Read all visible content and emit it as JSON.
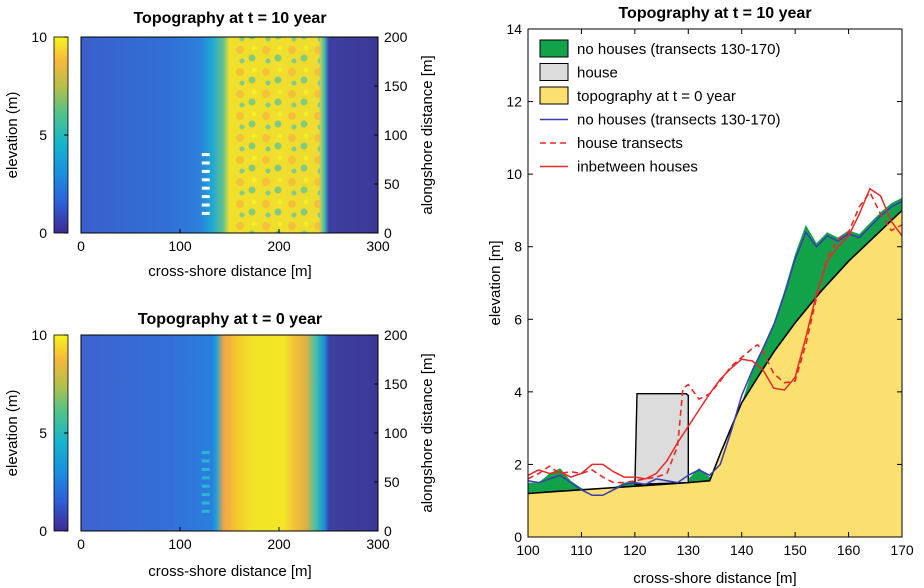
{
  "chart_data": [
    {
      "type": "heatmap",
      "title": "Topography at t = 10 year",
      "xlabel": "cross-shore distance [m]",
      "ylabel": "alongshore distance [m]",
      "colorbar_label": "elevation (m)",
      "xlim": [
        0,
        300
      ],
      "ylim": [
        0,
        200
      ],
      "clim": [
        0,
        10
      ],
      "x_ticks": [
        0,
        100,
        200,
        300
      ],
      "y_ticks": [
        0,
        50,
        100,
        150,
        200
      ],
      "colorbar_ticks": [
        0,
        5,
        10
      ],
      "colormap": "parula",
      "features": {
        "house_rows_x": [
          122,
          130
        ],
        "house_rows_y": [
          20,
          80
        ],
        "dune_crest_x": [
          150,
          250
        ]
      }
    },
    {
      "type": "heatmap",
      "title": "Topography at t = 0 year",
      "xlabel": "cross-shore distance [m]",
      "ylabel": "alongshore distance [m]",
      "colorbar_label": "elevation (m)",
      "xlim": [
        0,
        300
      ],
      "ylim": [
        0,
        200
      ],
      "clim": [
        0,
        10
      ],
      "x_ticks": [
        0,
        100,
        200,
        300
      ],
      "y_ticks": [
        0,
        50,
        100,
        150,
        200
      ],
      "colorbar_ticks": [
        0,
        5,
        10
      ],
      "colormap": "parula",
      "features": {
        "house_rows_x": [
          122,
          130
        ],
        "house_rows_y": [
          20,
          80
        ],
        "dune_crest_x": [
          140,
          250
        ]
      }
    },
    {
      "type": "area",
      "title": "Topography at t = 10 year",
      "xlabel": "cross-shore distance [m]",
      "ylabel": "elevation [m]",
      "xlim": [
        100,
        170
      ],
      "ylim": [
        0,
        14
      ],
      "x_ticks": [
        100,
        110,
        120,
        130,
        140,
        150,
        160,
        170
      ],
      "y_ticks": [
        0,
        2,
        4,
        6,
        8,
        10,
        12,
        14
      ],
      "legend_position": "top-left",
      "series": [
        {
          "name": "no houses (transects 130-170)",
          "kind": "fill",
          "color": "#12a34a",
          "x": [
            100,
            102,
            104,
            106,
            108,
            110,
            112,
            114,
            116,
            118,
            120,
            122,
            124,
            126,
            128,
            130,
            132,
            134,
            136,
            138,
            140,
            142,
            144,
            146,
            148,
            150,
            152,
            154,
            156,
            158,
            160,
            162,
            164,
            166,
            168,
            170
          ],
          "y": [
            1.5,
            1.5,
            1.75,
            1.9,
            1.55,
            1.35,
            1.2,
            1.2,
            1.35,
            1.5,
            1.55,
            1.5,
            1.6,
            1.45,
            1.45,
            1.6,
            1.9,
            1.65,
            1.9,
            2.7,
            3.7,
            4.6,
            5.25,
            5.9,
            6.8,
            7.8,
            8.6,
            8.1,
            8.4,
            8.25,
            8.45,
            8.35,
            8.65,
            8.95,
            9.2,
            9.35
          ]
        },
        {
          "name": "house",
          "kind": "fill",
          "color": "#dcdcdc",
          "x": [
            120,
            120.4,
            129.6,
            130,
            130
          ],
          "y": [
            1.45,
            3.95,
            3.95,
            3.9,
            1.5
          ]
        },
        {
          "name": "topography at t = 0 year",
          "kind": "fill",
          "color": "#fbe06f",
          "x": [
            100,
            105,
            110,
            115,
            120,
            125,
            130,
            134,
            136,
            138,
            140,
            143,
            146,
            150,
            155,
            160,
            165,
            170
          ],
          "y": [
            1.2,
            1.25,
            1.3,
            1.35,
            1.4,
            1.45,
            1.5,
            1.55,
            2.3,
            3.0,
            3.7,
            4.4,
            5.1,
            5.9,
            6.8,
            7.6,
            8.3,
            9.0
          ]
        },
        {
          "name": "no houses (transects 130-170)",
          "kind": "line",
          "color": "#3b3bb3",
          "x": [
            100,
            102,
            104,
            106,
            108,
            110,
            112,
            114,
            116,
            118,
            120,
            122,
            124,
            126,
            128,
            130,
            132,
            134,
            136,
            138,
            140,
            142,
            144,
            146,
            148,
            150,
            152,
            154,
            156,
            158,
            160,
            162,
            164,
            166,
            168,
            170
          ],
          "y": [
            1.55,
            1.5,
            1.6,
            1.7,
            1.5,
            1.3,
            1.15,
            1.15,
            1.3,
            1.45,
            1.5,
            1.45,
            1.6,
            1.55,
            1.5,
            1.7,
            1.85,
            1.7,
            2.0,
            2.9,
            3.9,
            4.6,
            5.2,
            5.85,
            6.7,
            7.65,
            8.4,
            8.0,
            8.3,
            8.15,
            8.35,
            8.25,
            8.55,
            8.85,
            9.1,
            9.25
          ]
        },
        {
          "name": "house transects",
          "kind": "line",
          "style": "dashed",
          "color": "#e8292a",
          "x": [
            100,
            102,
            104,
            106,
            108,
            110,
            112,
            114,
            116,
            118,
            120,
            122,
            124,
            126,
            128,
            129,
            130,
            132,
            134,
            136,
            138,
            140,
            142,
            143,
            144,
            146,
            148,
            150,
            152,
            154,
            156,
            158,
            160,
            162,
            164,
            166,
            168,
            170
          ],
          "y": [
            1.6,
            1.75,
            1.95,
            1.75,
            1.8,
            1.75,
            1.85,
            1.65,
            1.5,
            1.5,
            1.55,
            1.6,
            1.65,
            1.75,
            2.5,
            4.1,
            4.2,
            3.8,
            3.95,
            4.3,
            4.7,
            4.95,
            5.2,
            5.3,
            5.1,
            4.5,
            4.25,
            4.3,
            5.3,
            6.6,
            7.7,
            8.2,
            8.4,
            9.1,
            9.5,
            8.9,
            8.45,
            8.6
          ]
        },
        {
          "name": "inbetween houses",
          "kind": "line",
          "color": "#e8292a",
          "x": [
            100,
            102,
            104,
            106,
            108,
            110,
            112,
            114,
            116,
            118,
            120,
            122,
            124,
            126,
            128,
            130,
            132,
            134,
            136,
            138,
            140,
            142,
            144,
            146,
            148,
            150,
            152,
            154,
            156,
            158,
            160,
            162,
            164,
            166,
            168,
            170
          ],
          "y": [
            1.7,
            1.85,
            1.75,
            1.8,
            1.65,
            1.75,
            2.0,
            2.0,
            1.8,
            1.65,
            1.65,
            1.6,
            1.75,
            2.1,
            2.6,
            3.05,
            3.5,
            3.95,
            4.35,
            4.65,
            4.9,
            4.85,
            4.6,
            4.1,
            4.05,
            4.4,
            5.5,
            6.7,
            7.6,
            8.0,
            8.3,
            8.9,
            9.6,
            9.4,
            8.7,
            8.3
          ]
        }
      ]
    }
  ]
}
